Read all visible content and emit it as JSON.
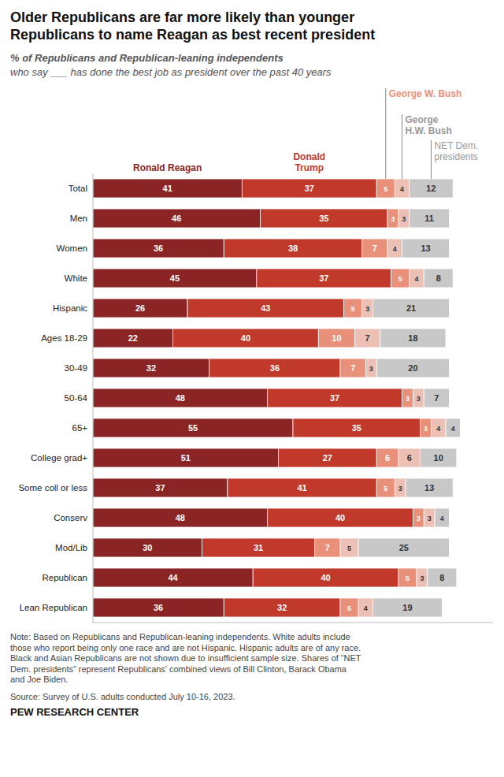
{
  "chart_data": {
    "type": "bar",
    "orientation": "horizontal",
    "stacked": true,
    "data_labels": true,
    "tick_labels": false,
    "grid": false,
    "title": "Older Republicans are far more likely than younger\nRepublicans to name Reagan as best recent president",
    "subtitle": [
      "% of Republicans and Republican-leaning independents",
      "who say ___ has done the best job as president over the past 40 years"
    ],
    "annotations": [
      "Note: Based on Republicans and Republican-leaning independents. White adults include\nthose who report being only one race and are not Hispanic. Hispanic adults are of any race.\nBlack and Asian Republicans are not shown due to insufficient sample size. Shares of “NET\nDem. presidents” represent Republicans’ combined views of Bill Clinton, Barack Obama\nand Joe Biden.",
      "Source: Survey of U.S. adults conducted July 10-16, 2023.",
      "PEW RESEARCH CENTER"
    ],
    "categories": [
      "Total",
      "Men",
      "Women",
      "White",
      "Hispanic",
      "Ages 18-29",
      "30-49",
      "50-64",
      "65+",
      "College grad+",
      "Some coll or less",
      "Conserv",
      "Mod/Lib",
      "Republican",
      "Lean Republican"
    ],
    "xlim": [
      0,
      110
    ],
    "series": [
      {
        "name": "Ronald Reagan",
        "color": "#8B2525",
        "values": [
          41,
          46,
          36,
          45,
          26,
          22,
          32,
          48,
          55,
          51,
          37,
          48,
          30,
          44,
          36
        ]
      },
      {
        "name": "Donald\nTrump",
        "color": "#C0392B",
        "values": [
          37,
          35,
          38,
          37,
          43,
          40,
          36,
          37,
          35,
          27,
          41,
          40,
          31,
          40,
          32
        ]
      },
      {
        "name": "George W. Bush",
        "color": "#E8907A",
        "values": [
          5,
          3,
          7,
          5,
          5,
          10,
          7,
          3,
          3,
          6,
          5,
          3,
          7,
          5,
          5
        ]
      },
      {
        "name": "George\nH.W. Bush",
        "color": "#ECC0B5",
        "values": [
          4,
          3,
          4,
          4,
          3,
          7,
          3,
          3,
          4,
          6,
          3,
          3,
          5,
          3,
          4
        ]
      },
      {
        "name": "NET Dem.\npresidents",
        "color": "#C8C8C8",
        "values": [
          12,
          11,
          13,
          8,
          21,
          18,
          20,
          7,
          4,
          10,
          13,
          4,
          25,
          8,
          19
        ]
      }
    ]
  }
}
